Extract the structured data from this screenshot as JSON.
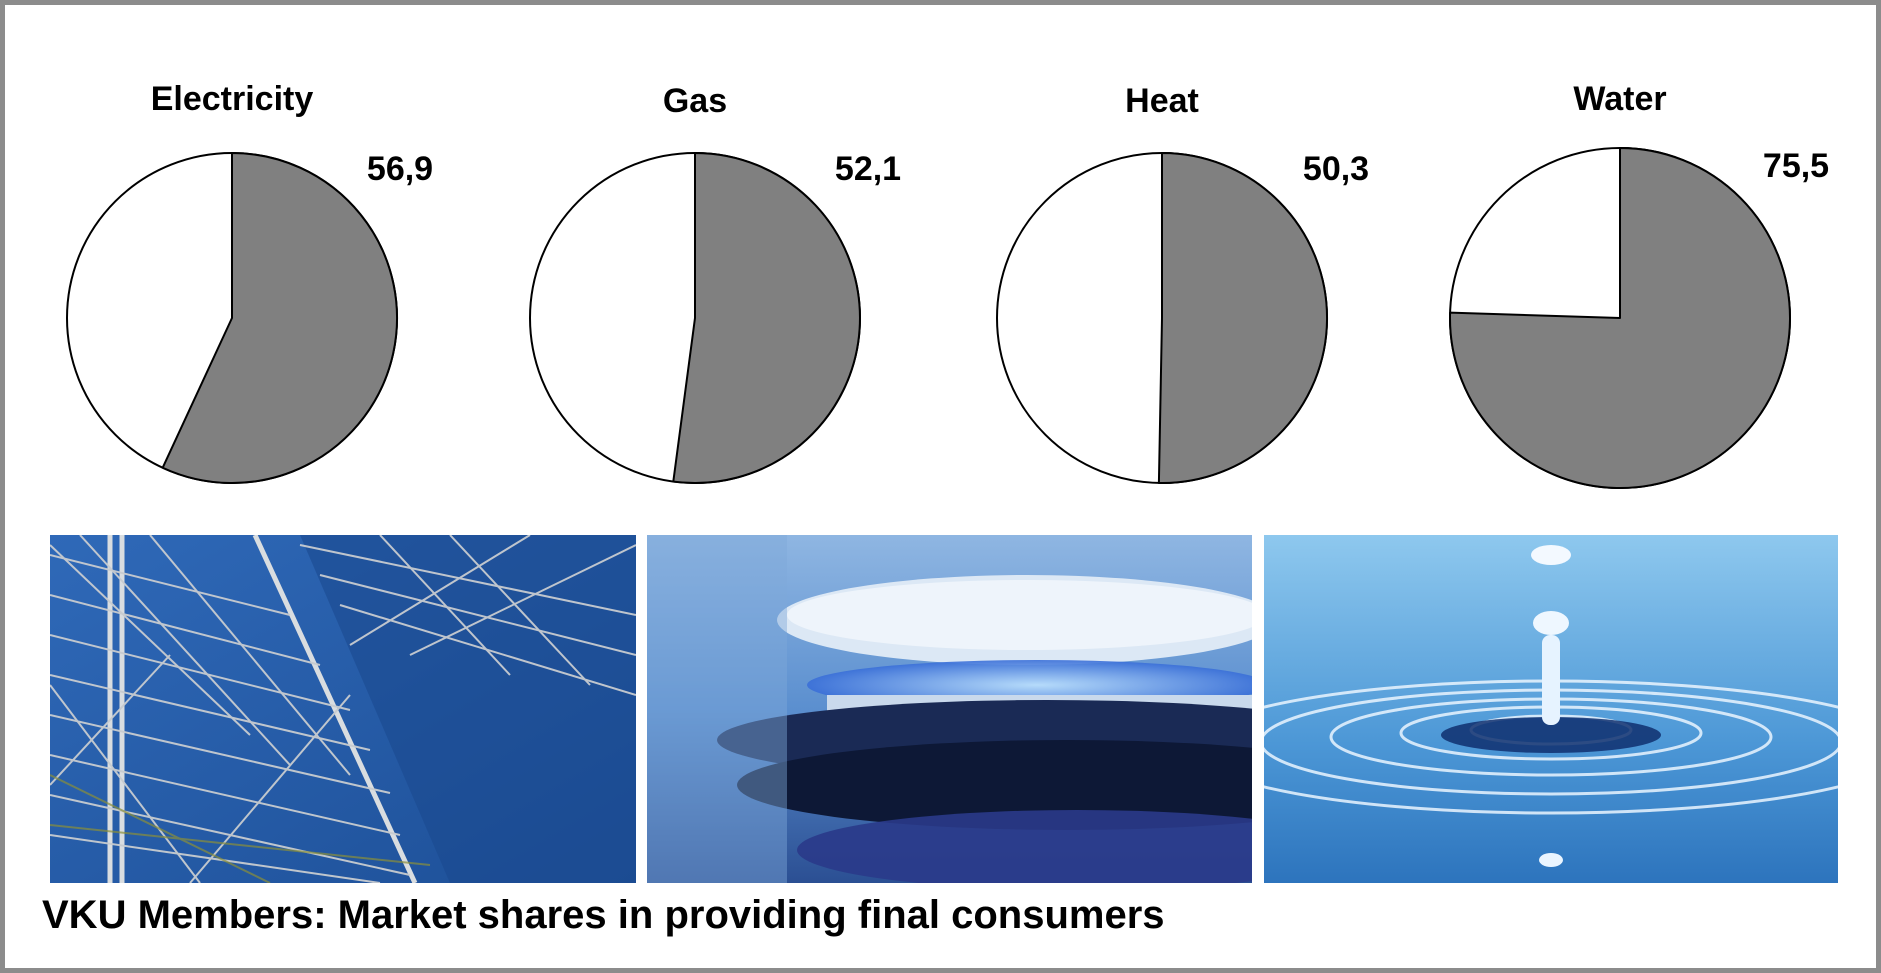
{
  "caption": "VKU Members: Market shares in providing final consumers",
  "colors": {
    "share": "#808080",
    "rest": "#ffffff",
    "outline": "#000000",
    "frame": "#8c8c8c"
  },
  "chart_data": [
    {
      "type": "pie",
      "title": "Electricity",
      "slices": [
        {
          "value": 56.9,
          "label": "56,9"
        },
        {
          "value": 43.1,
          "label": ""
        }
      ]
    },
    {
      "type": "pie",
      "title": "Gas",
      "slices": [
        {
          "value": 52.1,
          "label": "52,1"
        },
        {
          "value": 47.9,
          "label": ""
        }
      ]
    },
    {
      "type": "pie",
      "title": "Heat",
      "slices": [
        {
          "value": 50.3,
          "label": "50,3"
        },
        {
          "value": 49.7,
          "label": ""
        }
      ]
    },
    {
      "type": "pie",
      "title": "Water",
      "slices": [
        {
          "value": 75.5,
          "label": "75,5"
        },
        {
          "value": 24.5,
          "label": ""
        }
      ]
    }
  ],
  "photos": [
    {
      "subject": "electricity pylon lattice"
    },
    {
      "subject": "gas burner flame"
    },
    {
      "subject": "water drop ripple"
    }
  ]
}
